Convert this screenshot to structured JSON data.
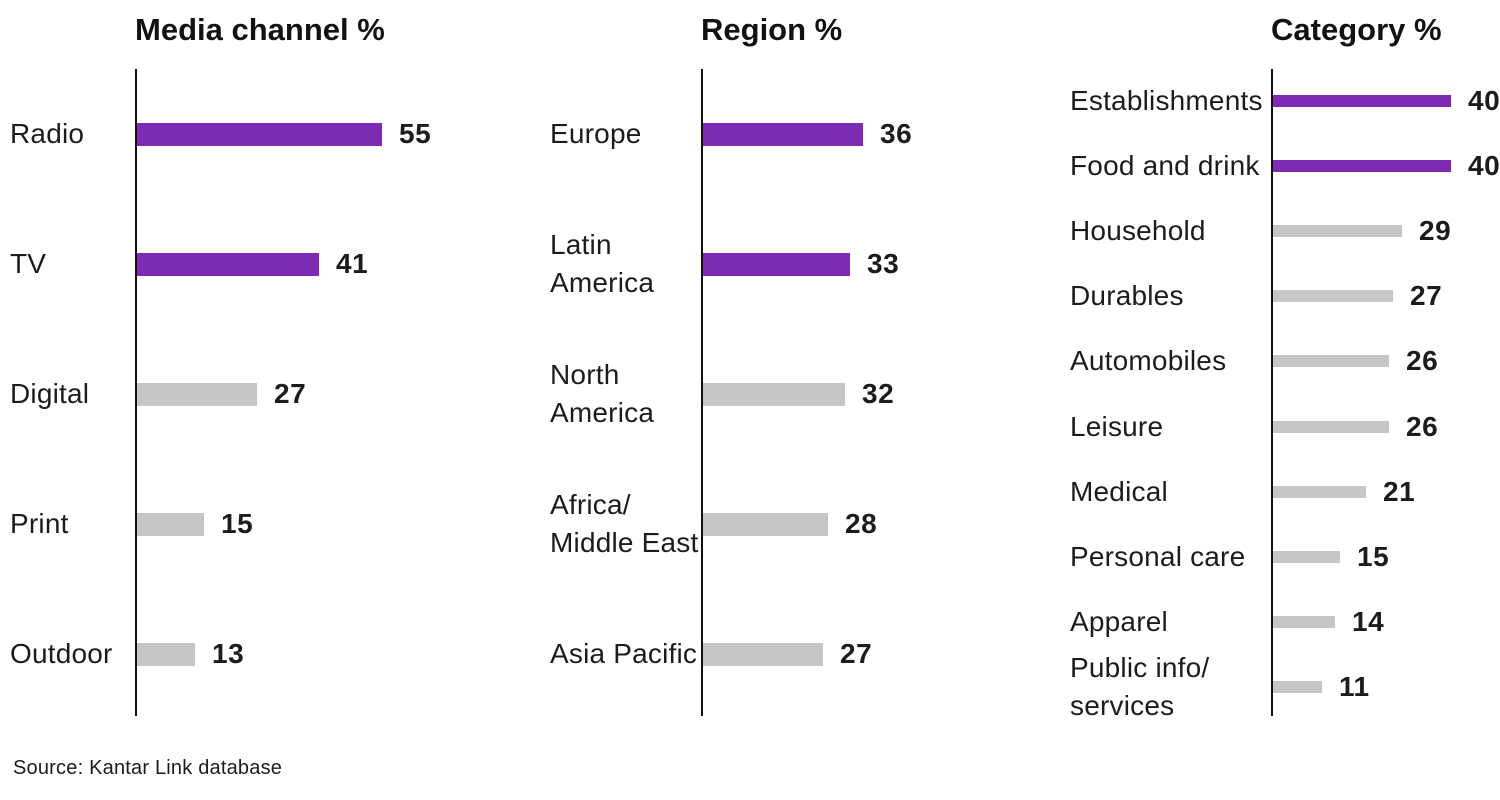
{
  "page": {
    "background": "#ffffff",
    "source_note": "Source: Kantar Link database"
  },
  "colors": {
    "highlight_bar": "#7d2bb5",
    "default_bar": "#c6c6c6",
    "axis": "#111111",
    "text": "#1c1c1c"
  },
  "chart_data": [
    {
      "type": "bar",
      "orientation": "horizontal",
      "title": "Media channel %",
      "categories": [
        "Radio",
        "TV",
        "Digital",
        "Print",
        "Outdoor"
      ],
      "values": [
        55,
        41,
        27,
        15,
        13
      ],
      "highlight_mask": [
        true,
        true,
        false,
        false,
        false
      ],
      "value_axis": "hidden",
      "grid": false,
      "legend": "none"
    },
    {
      "type": "bar",
      "orientation": "horizontal",
      "title": "Region %",
      "categories": [
        "Europe",
        "Latin\nAmerica",
        "North\nAmerica",
        "Africa/\nMiddle East",
        "Asia Pacific"
      ],
      "values": [
        36,
        33,
        32,
        28,
        27
      ],
      "highlight_mask": [
        true,
        true,
        false,
        false,
        false
      ],
      "value_axis": "hidden",
      "grid": false,
      "legend": "none"
    },
    {
      "type": "bar",
      "orientation": "horizontal",
      "title": "Category %",
      "categories": [
        "Establishments",
        "Food and drink",
        "Household",
        "Durables",
        "Automobiles",
        "Leisure",
        "Medical",
        "Personal care",
        "Apparel",
        "Public info/\nservices"
      ],
      "values": [
        40,
        40,
        29,
        27,
        26,
        26,
        21,
        15,
        14,
        11
      ],
      "highlight_mask": [
        true,
        true,
        false,
        false,
        false,
        false,
        false,
        false,
        false,
        false
      ],
      "value_axis": "hidden",
      "grid": false,
      "legend": "none"
    }
  ]
}
